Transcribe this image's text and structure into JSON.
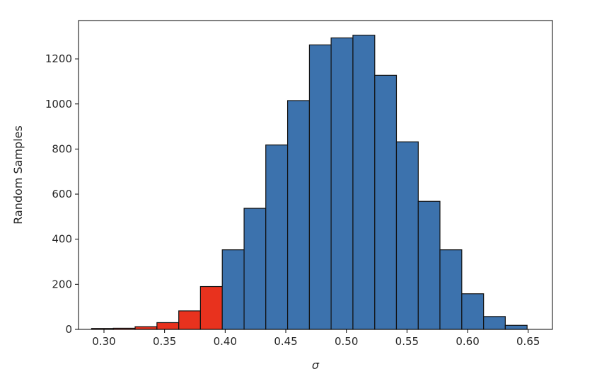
{
  "chart_data": {
    "type": "bar",
    "title": "",
    "xlabel": "σ",
    "ylabel": "Random Samples",
    "xlim": [
      0.279,
      0.67
    ],
    "ylim": [
      0,
      1370
    ],
    "grid": false,
    "legend": "none",
    "x_ticks": [
      0.3,
      0.35,
      0.4,
      0.45,
      0.5,
      0.55,
      0.6,
      0.65
    ],
    "x_tick_labels": [
      "0.30",
      "0.35",
      "0.40",
      "0.45",
      "0.50",
      "0.55",
      "0.60",
      "0.65"
    ],
    "y_ticks": [
      0,
      200,
      400,
      600,
      800,
      1000,
      1200
    ],
    "y_tick_labels": [
      "0",
      "200",
      "400",
      "600",
      "800",
      "1000",
      "1200"
    ],
    "bins": [
      {
        "x0": 0.2898,
        "x1": 0.3077,
        "value": 4,
        "color": "#e8321e"
      },
      {
        "x0": 0.3077,
        "x1": 0.3257,
        "value": 5,
        "color": "#e8321e"
      },
      {
        "x0": 0.3257,
        "x1": 0.3437,
        "value": 12,
        "color": "#e8321e"
      },
      {
        "x0": 0.3437,
        "x1": 0.3617,
        "value": 30,
        "color": "#e8321e"
      },
      {
        "x0": 0.3617,
        "x1": 0.3796,
        "value": 82,
        "color": "#e8321e"
      },
      {
        "x0": 0.3796,
        "x1": 0.3976,
        "value": 190,
        "color": "#e8321e"
      },
      {
        "x0": 0.3976,
        "x1": 0.4156,
        "value": 353,
        "color": "#3c72ad"
      },
      {
        "x0": 0.4156,
        "x1": 0.4335,
        "value": 537,
        "color": "#3c72ad"
      },
      {
        "x0": 0.4335,
        "x1": 0.4515,
        "value": 818,
        "color": "#3c72ad"
      },
      {
        "x0": 0.4515,
        "x1": 0.4695,
        "value": 1015,
        "color": "#3c72ad"
      },
      {
        "x0": 0.4695,
        "x1": 0.4874,
        "value": 1262,
        "color": "#3c72ad"
      },
      {
        "x0": 0.4874,
        "x1": 0.5054,
        "value": 1293,
        "color": "#3c72ad"
      },
      {
        "x0": 0.5054,
        "x1": 0.5234,
        "value": 1305,
        "color": "#3c72ad"
      },
      {
        "x0": 0.5234,
        "x1": 0.5413,
        "value": 1127,
        "color": "#3c72ad"
      },
      {
        "x0": 0.5413,
        "x1": 0.5593,
        "value": 832,
        "color": "#3c72ad"
      },
      {
        "x0": 0.5593,
        "x1": 0.5772,
        "value": 568,
        "color": "#3c72ad"
      },
      {
        "x0": 0.5772,
        "x1": 0.5952,
        "value": 353,
        "color": "#3c72ad"
      },
      {
        "x0": 0.5952,
        "x1": 0.6132,
        "value": 158,
        "color": "#3c72ad"
      },
      {
        "x0": 0.6132,
        "x1": 0.6311,
        "value": 57,
        "color": "#3c72ad"
      },
      {
        "x0": 0.6311,
        "x1": 0.6491,
        "value": 18,
        "color": "#3c72ad"
      }
    ],
    "colors": {
      "highlight": "#e8321e",
      "main": "#3c72ad",
      "edge": "#111111"
    }
  }
}
